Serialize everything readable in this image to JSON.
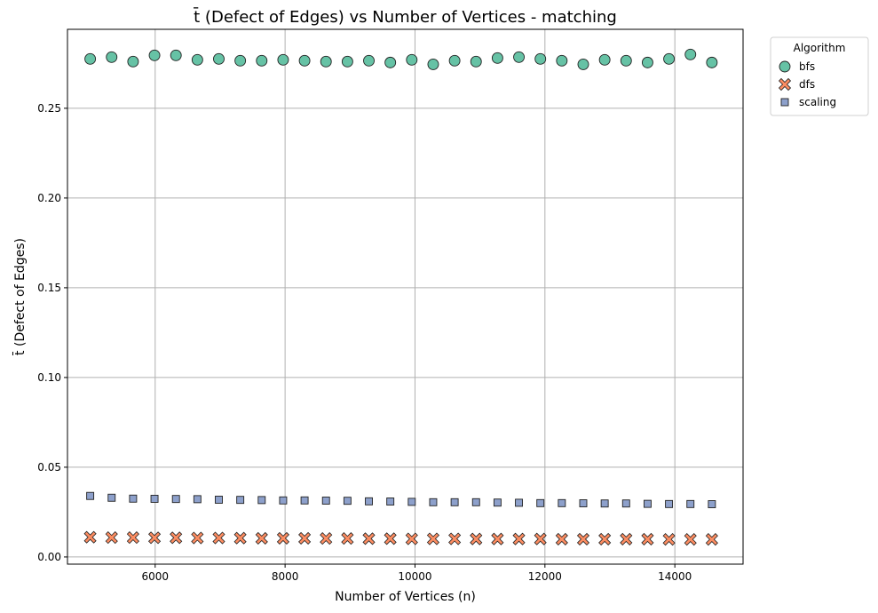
{
  "chart_data": {
    "type": "scatter",
    "title": "t̄ (Defect of Edges) vs Number of Vertices - matching",
    "xlabel": "Number of Vertices (n)",
    "ylabel": "t̄ (Defect of Edges)",
    "xlim": [
      4650,
      15050
    ],
    "ylim": [
      -0.004,
      0.294
    ],
    "xticks": [
      6000,
      8000,
      10000,
      12000,
      14000
    ],
    "xtick_labels": [
      "6000",
      "8000",
      "10000",
      "12000",
      "14000"
    ],
    "yticks": [
      0.0,
      0.05,
      0.1,
      0.15,
      0.2,
      0.25
    ],
    "ytick_labels": [
      "0.00",
      "0.05",
      "0.10",
      "0.15",
      "0.20",
      "0.25"
    ],
    "grid": true,
    "legend": {
      "title": "Algorithm",
      "placement": "outside-top-right"
    },
    "x": [
      5000,
      5330,
      5660,
      5990,
      6320,
      6650,
      6980,
      7310,
      7640,
      7970,
      8300,
      8630,
      8960,
      9290,
      9620,
      9950,
      10280,
      10610,
      10940,
      11270,
      11600,
      11930,
      12260,
      12590,
      12920,
      13250,
      13580,
      13910,
      14240,
      14570
    ],
    "series": [
      {
        "name": "bfs",
        "marker": "circle",
        "color": "#66c2a5",
        "values": [
          0.2775,
          0.2785,
          0.276,
          0.2795,
          0.2795,
          0.277,
          0.2775,
          0.2765,
          0.2765,
          0.277,
          0.2765,
          0.276,
          0.276,
          0.2765,
          0.2755,
          0.277,
          0.2745,
          0.2765,
          0.276,
          0.278,
          0.2785,
          0.2775,
          0.2765,
          0.2745,
          0.277,
          0.2765,
          0.2755,
          0.2775,
          0.28,
          0.2755
        ]
      },
      {
        "name": "dfs",
        "marker": "x",
        "color": "#fc8d62",
        "values": [
          0.011,
          0.0108,
          0.0108,
          0.0107,
          0.0107,
          0.0106,
          0.0106,
          0.0105,
          0.0104,
          0.0104,
          0.0104,
          0.0103,
          0.0103,
          0.0102,
          0.0102,
          0.0101,
          0.0101,
          0.0101,
          0.01,
          0.01,
          0.01,
          0.01,
          0.0099,
          0.0099,
          0.0099,
          0.0099,
          0.0099,
          0.0098,
          0.0098,
          0.0098
        ]
      },
      {
        "name": "scaling",
        "marker": "square",
        "color": "#8da0cb",
        "values": [
          0.034,
          0.033,
          0.0325,
          0.0324,
          0.0323,
          0.0322,
          0.0319,
          0.0318,
          0.0317,
          0.0315,
          0.0315,
          0.0314,
          0.0313,
          0.031,
          0.0309,
          0.0307,
          0.0305,
          0.0305,
          0.0305,
          0.0303,
          0.0302,
          0.03,
          0.03,
          0.0299,
          0.0298,
          0.0298,
          0.0296,
          0.0295,
          0.0295,
          0.0294
        ]
      }
    ]
  }
}
